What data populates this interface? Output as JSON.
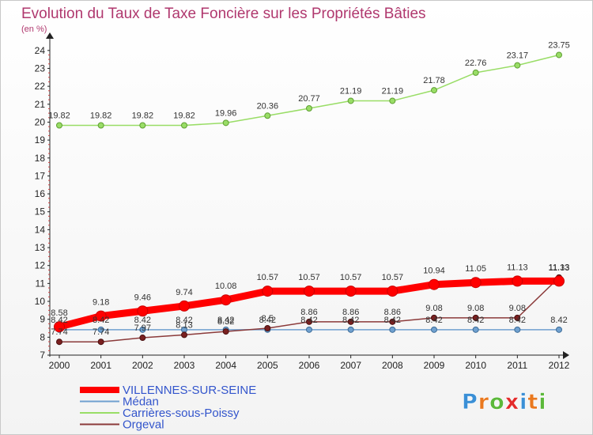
{
  "chart_data": {
    "type": "line",
    "title": "Evolution du Taux de Taxe Foncière sur les Propriétés Bâties",
    "subtitle": "(en %)",
    "x": [
      "2000",
      "2001",
      "2002",
      "2003",
      "2004",
      "2005",
      "2006",
      "2007",
      "2008",
      "2009",
      "2010",
      "2011",
      "2012"
    ],
    "yticks": [
      "7",
      "8",
      "9",
      "10",
      "11",
      "12",
      "13",
      "14",
      "15",
      "16",
      "17",
      "18",
      "19",
      "20",
      "21",
      "22",
      "23",
      "24"
    ],
    "ylim": [
      7,
      24.3
    ],
    "grid": false,
    "legend_position": "bottom-left",
    "series": [
      {
        "name": "VILLENNES-SUR-SEINE",
        "color": "#ff0000",
        "values": [
          8.58,
          9.18,
          9.46,
          9.74,
          10.08,
          10.57,
          10.57,
          10.57,
          10.57,
          10.94,
          11.05,
          11.13,
          11.13
        ],
        "labels": [
          "8.58",
          "9.18",
          "9.46",
          "9.74",
          "10.08",
          "10.57",
          "10.57",
          "10.57",
          "10.57",
          "10.94",
          "11.05",
          "11.13",
          "11.13"
        ]
      },
      {
        "name": "Médan",
        "color": "#6fa0cf",
        "values": [
          8.42,
          8.42,
          8.42,
          8.42,
          8.42,
          8.42,
          8.42,
          8.42,
          8.42,
          8.42,
          8.42,
          8.42,
          8.42
        ],
        "labels": [
          "8.42",
          "8.42",
          "8.42",
          "8.42",
          "8.42",
          "8.42",
          "8.42",
          "8.42",
          "8.42",
          "8.42",
          "8.42",
          "8.42",
          "8.42"
        ]
      },
      {
        "name": "Carrières-sous-Poissy",
        "color": "#99dd66",
        "values": [
          19.82,
          19.82,
          19.82,
          19.82,
          19.96,
          20.36,
          20.77,
          21.19,
          21.19,
          21.78,
          22.76,
          23.17,
          23.75
        ],
        "labels": [
          "19.82",
          "19.82",
          "19.82",
          "19.82",
          "19.96",
          "20.36",
          "20.77",
          "21.19",
          "21.19",
          "21.78",
          "22.76",
          "23.17",
          "23.75"
        ]
      },
      {
        "name": "Orgeval",
        "color": "#8b3a3a",
        "values": [
          7.74,
          7.74,
          7.97,
          8.13,
          8.32,
          8.5,
          8.86,
          8.86,
          8.86,
          9.08,
          9.08,
          9.08,
          11.33
        ],
        "labels": [
          "7.74",
          "7.74",
          "7.97",
          "8.13",
          "8.32",
          "8.5",
          "8.86",
          "8.86",
          "8.86",
          "9.08",
          "9.08",
          "9.08",
          "11.33"
        ]
      }
    ]
  },
  "logo": {
    "text": "Proxiti",
    "letter_colors": [
      "#3a8fd6",
      "#e9781e",
      "#5bb83a",
      "#e32b2b",
      "#3a8fd6",
      "#e9781e",
      "#5bb83a"
    ]
  }
}
